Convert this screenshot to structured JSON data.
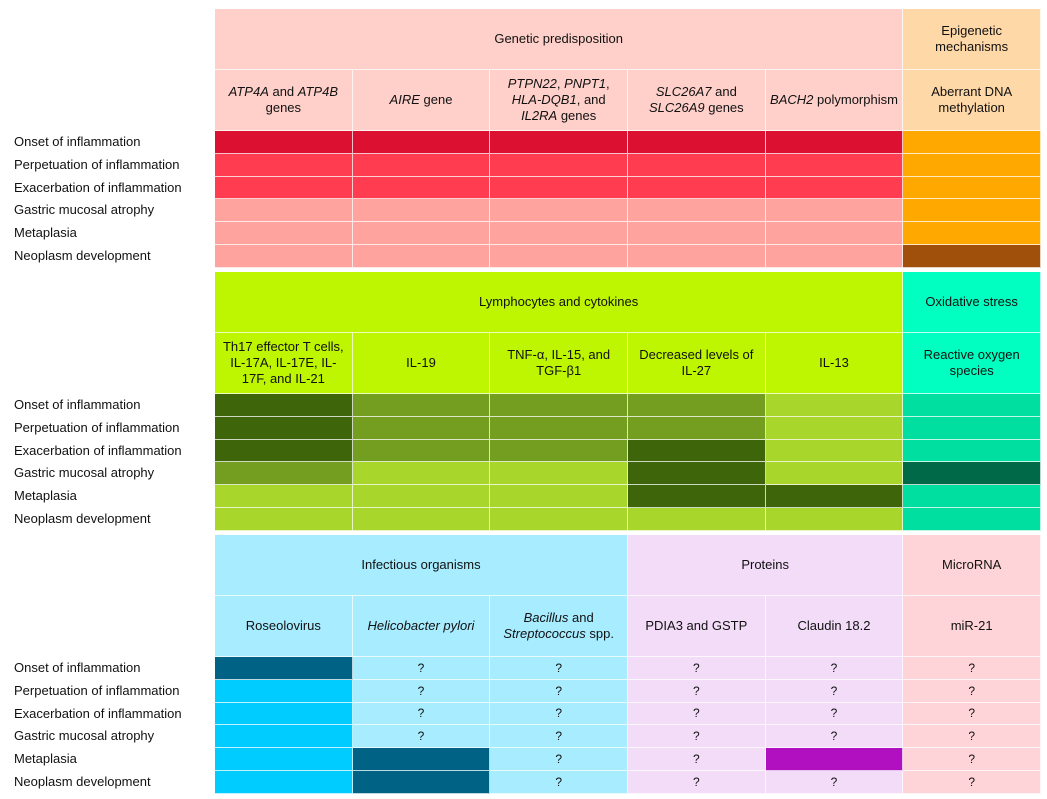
{
  "sections": [
    {
      "groups": [
        {
          "label": "Genetic predisposition",
          "span": 5,
          "bg": "#FFD0CA"
        },
        {
          "label": "Epigenetic mechanisms",
          "span": 1,
          "bg": "#FFD8A8"
        }
      ],
      "columns": [
        {
          "bg": "#FFD0CA",
          "segments": [
            {
              "t": "ATP4A",
              "i": true
            },
            {
              "t": " and ",
              "i": false
            },
            {
              "t": "ATP4B",
              "i": true
            },
            {
              "t": " genes",
              "i": false
            }
          ]
        },
        {
          "bg": "#FFD0CA",
          "segments": [
            {
              "t": "AIRE",
              "i": true
            },
            {
              "t": " gene",
              "i": false
            }
          ]
        },
        {
          "bg": "#FFD0CA",
          "segments": [
            {
              "t": "PTPN22",
              "i": true
            },
            {
              "t": ", ",
              "i": false
            },
            {
              "t": "PNPT1",
              "i": true
            },
            {
              "t": ", ",
              "i": false
            },
            {
              "t": "HLA-DQB1",
              "i": true
            },
            {
              "t": ", and ",
              "i": false
            },
            {
              "t": "IL2RA",
              "i": true
            },
            {
              "t": " genes",
              "i": false
            }
          ]
        },
        {
          "bg": "#FFD0CA",
          "segments": [
            {
              "t": "SLC26A7",
              "i": true
            },
            {
              "t": " and ",
              "i": false
            },
            {
              "t": "SLC26A9",
              "i": true
            },
            {
              "t": " genes",
              "i": false
            }
          ]
        },
        {
          "bg": "#FFD0CA",
          "segments": [
            {
              "t": "BACH2",
              "i": true
            },
            {
              "t": " polymorphism",
              "i": false
            }
          ]
        },
        {
          "bg": "#FFD8A8",
          "segments": [
            {
              "t": "Aberrant DNA methylation",
              "i": false
            }
          ]
        }
      ],
      "row_labels": [
        "Onset of inflammation",
        "Perpetuation of inflammation",
        "Exacerbation of inflammation",
        "Gastric mucosal atrophy",
        "Metaplasia",
        "Neoplasm development"
      ],
      "cells": [
        [
          {
            "c": "#DC1030"
          },
          {
            "c": "#DC1030"
          },
          {
            "c": "#DC1030"
          },
          {
            "c": "#DC1030"
          },
          {
            "c": "#DC1030"
          },
          {
            "c": "#FFA800"
          }
        ],
        [
          {
            "c": "#FF3C50"
          },
          {
            "c": "#FF3C50"
          },
          {
            "c": "#FF3C50"
          },
          {
            "c": "#FF3C50"
          },
          {
            "c": "#FF3C50"
          },
          {
            "c": "#FFA800"
          }
        ],
        [
          {
            "c": "#FF3C50"
          },
          {
            "c": "#FF3C50"
          },
          {
            "c": "#FF3C50"
          },
          {
            "c": "#FF3C50"
          },
          {
            "c": "#FF3C50"
          },
          {
            "c": "#FFA800"
          }
        ],
        [
          {
            "c": "#FFA39E"
          },
          {
            "c": "#FFA39E"
          },
          {
            "c": "#FFA39E"
          },
          {
            "c": "#FFA39E"
          },
          {
            "c": "#FFA39E"
          },
          {
            "c": "#FFA800"
          }
        ],
        [
          {
            "c": "#FFA39E"
          },
          {
            "c": "#FFA39E"
          },
          {
            "c": "#FFA39E"
          },
          {
            "c": "#FFA39E"
          },
          {
            "c": "#FFA39E"
          },
          {
            "c": "#FFA800"
          }
        ],
        [
          {
            "c": "#FFA39E"
          },
          {
            "c": "#FFA39E"
          },
          {
            "c": "#FFA39E"
          },
          {
            "c": "#FFA39E"
          },
          {
            "c": "#FFA39E"
          },
          {
            "c": "#A0500A"
          }
        ]
      ]
    },
    {
      "groups": [
        {
          "label": "Lymphocytes and cytokines",
          "span": 5,
          "bg": "#BEF500"
        },
        {
          "label": "Oxidative stress",
          "span": 1,
          "bg": "#00FFC0"
        }
      ],
      "columns": [
        {
          "bg": "#BEF500",
          "segments": [
            {
              "t": "Th17 effector T cells, IL-17A, IL-17E, IL-17F, and IL-21",
              "i": false
            }
          ]
        },
        {
          "bg": "#BEF500",
          "segments": [
            {
              "t": "IL-19",
              "i": false
            }
          ]
        },
        {
          "bg": "#BEF500",
          "segments": [
            {
              "t": "TNF-α, IL-15, and TGF-β1",
              "i": false
            }
          ]
        },
        {
          "bg": "#BEF500",
          "segments": [
            {
              "t": "Decreased levels of IL-27",
              "i": false
            }
          ]
        },
        {
          "bg": "#BEF500",
          "segments": [
            {
              "t": "IL-13",
              "i": false
            }
          ]
        },
        {
          "bg": "#00FFC0",
          "segments": [
            {
              "t": "Reactive oxygen species",
              "i": false
            }
          ]
        }
      ],
      "row_labels": [
        "Onset of inflammation",
        "Perpetuation of inflammation",
        "Exacerbation of inflammation",
        "Gastric mucosal atrophy",
        "Metaplasia",
        "Neoplasm development"
      ],
      "cells": [
        [
          {
            "c": "#3F650A"
          },
          {
            "c": "#739E20"
          },
          {
            "c": "#739E20"
          },
          {
            "c": "#739E20"
          },
          {
            "c": "#A8D62A"
          },
          {
            "c": "#00DFA0"
          }
        ],
        [
          {
            "c": "#3F650A"
          },
          {
            "c": "#739E20"
          },
          {
            "c": "#739E20"
          },
          {
            "c": "#739E20"
          },
          {
            "c": "#A8D62A"
          },
          {
            "c": "#00DFA0"
          }
        ],
        [
          {
            "c": "#3F650A"
          },
          {
            "c": "#739E20"
          },
          {
            "c": "#739E20"
          },
          {
            "c": "#3F650A"
          },
          {
            "c": "#A8D62A"
          },
          {
            "c": "#00DFA0"
          }
        ],
        [
          {
            "c": "#739E20"
          },
          {
            "c": "#A8D62A"
          },
          {
            "c": "#A8D62A"
          },
          {
            "c": "#3F650A"
          },
          {
            "c": "#A8D62A"
          },
          {
            "c": "#006A48"
          }
        ],
        [
          {
            "c": "#A8D62A"
          },
          {
            "c": "#A8D62A"
          },
          {
            "c": "#A8D62A"
          },
          {
            "c": "#3F650A"
          },
          {
            "c": "#3F650A"
          },
          {
            "c": "#00DFA0"
          }
        ],
        [
          {
            "c": "#A8D62A"
          },
          {
            "c": "#A8D62A"
          },
          {
            "c": "#A8D62A"
          },
          {
            "c": "#A8D62A"
          },
          {
            "c": "#A8D62A"
          },
          {
            "c": "#00DFA0"
          }
        ]
      ]
    },
    {
      "groups": [
        {
          "label": "Infectious organisms",
          "span": 3,
          "bg": "#A8ECFF"
        },
        {
          "label": "Proteins",
          "span": 2,
          "bg": "#F2DCF8"
        },
        {
          "label": "MicroRNA",
          "span": 1,
          "bg": "#FFD4D8"
        }
      ],
      "columns": [
        {
          "bg": "#A8ECFF",
          "segments": [
            {
              "t": "Roseolovirus",
              "i": false
            }
          ]
        },
        {
          "bg": "#A8ECFF",
          "segments": [
            {
              "t": "Helicobacter pylori",
              "i": true
            }
          ]
        },
        {
          "bg": "#A8ECFF",
          "segments": [
            {
              "t": "Bacillus",
              "i": true
            },
            {
              "t": " and ",
              "i": false
            },
            {
              "t": "Streptococcus",
              "i": true
            },
            {
              "t": " spp.",
              "i": false
            }
          ]
        },
        {
          "bg": "#F2DCF8",
          "segments": [
            {
              "t": "PDIA3 and GSTP",
              "i": false
            }
          ]
        },
        {
          "bg": "#F2DCF8",
          "segments": [
            {
              "t": "Claudin 18.2",
              "i": false
            }
          ]
        },
        {
          "bg": "#FFD4D8",
          "segments": [
            {
              "t": "miR-21",
              "i": false
            }
          ]
        }
      ],
      "row_labels": [
        "Onset of inflammation",
        "Perpetuation of inflammation",
        "Exacerbation of inflammation",
        "Gastric mucosal atrophy",
        "Metaplasia",
        "Neoplasm development"
      ],
      "cells": [
        [
          {
            "c": "#006385"
          },
          {
            "c": "#A8ECFF",
            "t": "?"
          },
          {
            "c": "#A8ECFF",
            "t": "?"
          },
          {
            "c": "#F2DCF8",
            "t": "?"
          },
          {
            "c": "#F2DCF8",
            "t": "?"
          },
          {
            "c": "#FFD4D8",
            "t": "?"
          }
        ],
        [
          {
            "c": "#00CCFF"
          },
          {
            "c": "#A8ECFF",
            "t": "?"
          },
          {
            "c": "#A8ECFF",
            "t": "?"
          },
          {
            "c": "#F2DCF8",
            "t": "?"
          },
          {
            "c": "#F2DCF8",
            "t": "?"
          },
          {
            "c": "#FFD4D8",
            "t": "?"
          }
        ],
        [
          {
            "c": "#00CCFF"
          },
          {
            "c": "#A8ECFF",
            "t": "?"
          },
          {
            "c": "#A8ECFF",
            "t": "?"
          },
          {
            "c": "#F2DCF8",
            "t": "?"
          },
          {
            "c": "#F2DCF8",
            "t": "?"
          },
          {
            "c": "#FFD4D8",
            "t": "?"
          }
        ],
        [
          {
            "c": "#00CCFF"
          },
          {
            "c": "#A8ECFF",
            "t": "?"
          },
          {
            "c": "#A8ECFF",
            "t": "?"
          },
          {
            "c": "#F2DCF8",
            "t": "?"
          },
          {
            "c": "#F2DCF8",
            "t": "?"
          },
          {
            "c": "#FFD4D8",
            "t": "?"
          }
        ],
        [
          {
            "c": "#00CCFF"
          },
          {
            "c": "#006385"
          },
          {
            "c": "#A8ECFF",
            "t": "?"
          },
          {
            "c": "#F2DCF8",
            "t": "?"
          },
          {
            "c": "#B010C0"
          },
          {
            "c": "#FFD4D8",
            "t": "?"
          }
        ],
        [
          {
            "c": "#00CCFF"
          },
          {
            "c": "#006385"
          },
          {
            "c": "#A8ECFF",
            "t": "?"
          },
          {
            "c": "#F2DCF8",
            "t": "?"
          },
          {
            "c": "#F2DCF8",
            "t": "?"
          },
          {
            "c": "#FFD4D8",
            "t": "?"
          }
        ]
      ]
    }
  ]
}
